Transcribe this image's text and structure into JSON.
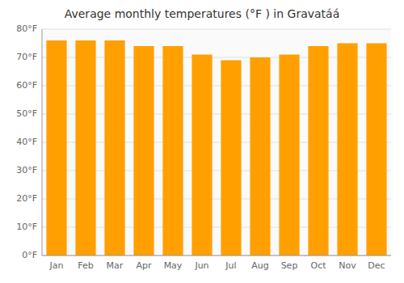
{
  "chart_data": {
    "type": "bar",
    "title": "Average monthly temperatures (°F ) in Gravatáá",
    "categories": [
      "Jan",
      "Feb",
      "Mar",
      "Apr",
      "May",
      "Jun",
      "Jul",
      "Aug",
      "Sep",
      "Oct",
      "Nov",
      "Dec"
    ],
    "values": [
      76,
      76,
      76,
      74,
      74,
      71,
      69,
      70,
      71,
      74,
      75,
      75
    ],
    "color": "#FFA000",
    "ylim": [
      0,
      80
    ],
    "yticks": [
      {
        "value": 0,
        "label": "0°F"
      },
      {
        "value": 10,
        "label": "10°F"
      },
      {
        "value": 20,
        "label": "20°F"
      },
      {
        "value": 30,
        "label": "30°F"
      },
      {
        "value": 40,
        "label": "40°F"
      },
      {
        "value": 50,
        "label": "50°F"
      },
      {
        "value": 60,
        "label": "60°F"
      },
      {
        "value": 70,
        "label": "70°F"
      },
      {
        "value": 80,
        "label": "80°F"
      }
    ],
    "grid": true
  }
}
